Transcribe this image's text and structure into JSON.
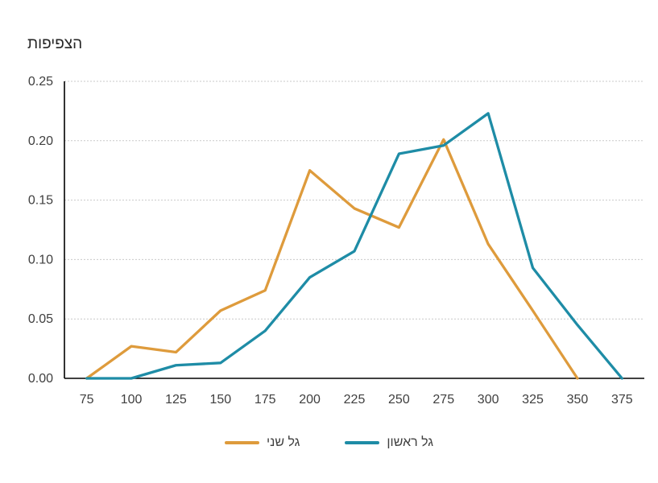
{
  "chart": {
    "title": "הצפיפות"
  },
  "chart_data": {
    "type": "line",
    "title": "הצפיפות",
    "categories": [
      75,
      100,
      125,
      150,
      175,
      200,
      225,
      250,
      275,
      300,
      325,
      350,
      375
    ],
    "series": [
      {
        "name": "גל שני",
        "color": "#DE9B3C",
        "values": [
          0,
          0.027,
          0.022,
          0.057,
          0.074,
          0.175,
          0.143,
          0.127,
          0.201,
          0.113,
          0.057,
          0,
          null
        ]
      },
      {
        "name": "גל ראשון",
        "color": "#1E8CA6",
        "values": [
          0,
          0,
          0.011,
          0.013,
          0.04,
          0.085,
          0.107,
          0.189,
          0.196,
          0.223,
          0.093,
          0.045,
          0
        ]
      }
    ],
    "xlabel": "",
    "ylabel": "",
    "ylim": [
      0,
      0.25
    ],
    "yticks": [
      0,
      0.05,
      0.1,
      0.15,
      0.2,
      0.25
    ],
    "ytick_format_decimals": 2,
    "grid": true,
    "gridline_style": "dashed",
    "legend_position": "bottom"
  },
  "style_colors": {
    "axis": "#000000",
    "gridline": "#C9C9C9",
    "tick_text": "#3F3F3F",
    "title_text": "#262626"
  }
}
